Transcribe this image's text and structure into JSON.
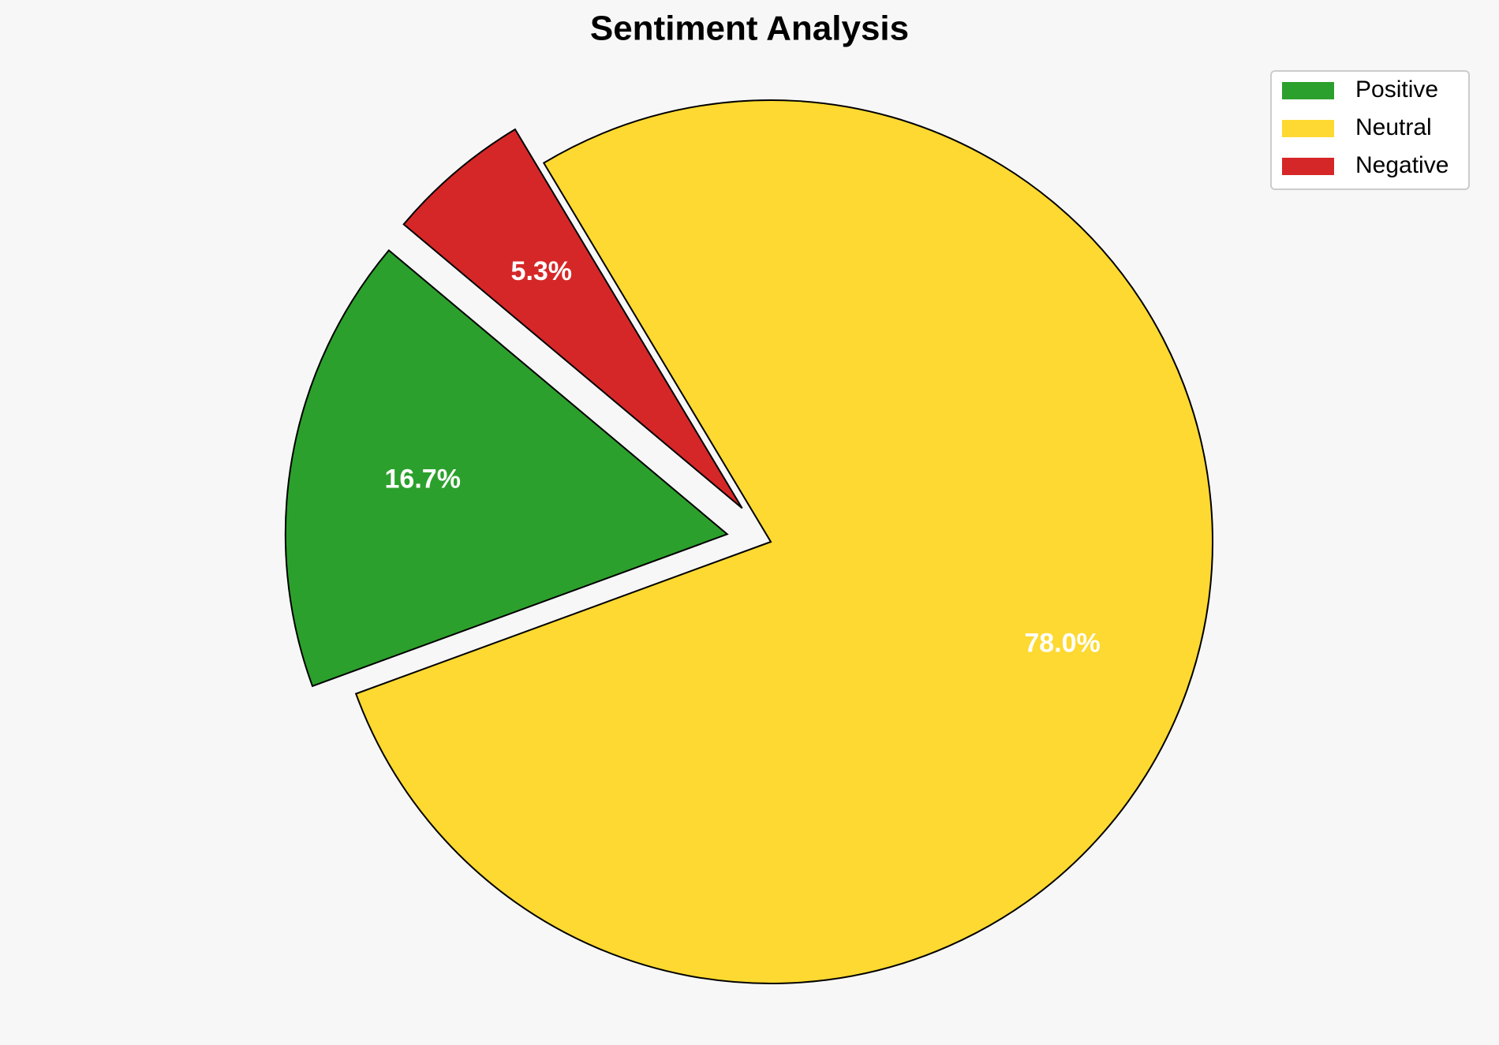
{
  "chart_data": {
    "type": "pie",
    "title": "Sentiment Analysis",
    "categories": [
      "Positive",
      "Neutral",
      "Negative"
    ],
    "values": [
      16.7,
      78.0,
      5.3
    ],
    "value_labels": [
      "16.7%",
      "78.0%",
      "5.3%"
    ],
    "colors": [
      "#2ca02c",
      "#fdd931",
      "#d62728"
    ],
    "startangle": 140,
    "explode": [
      0.1,
      0,
      0.1
    ],
    "legend": "upper right"
  }
}
